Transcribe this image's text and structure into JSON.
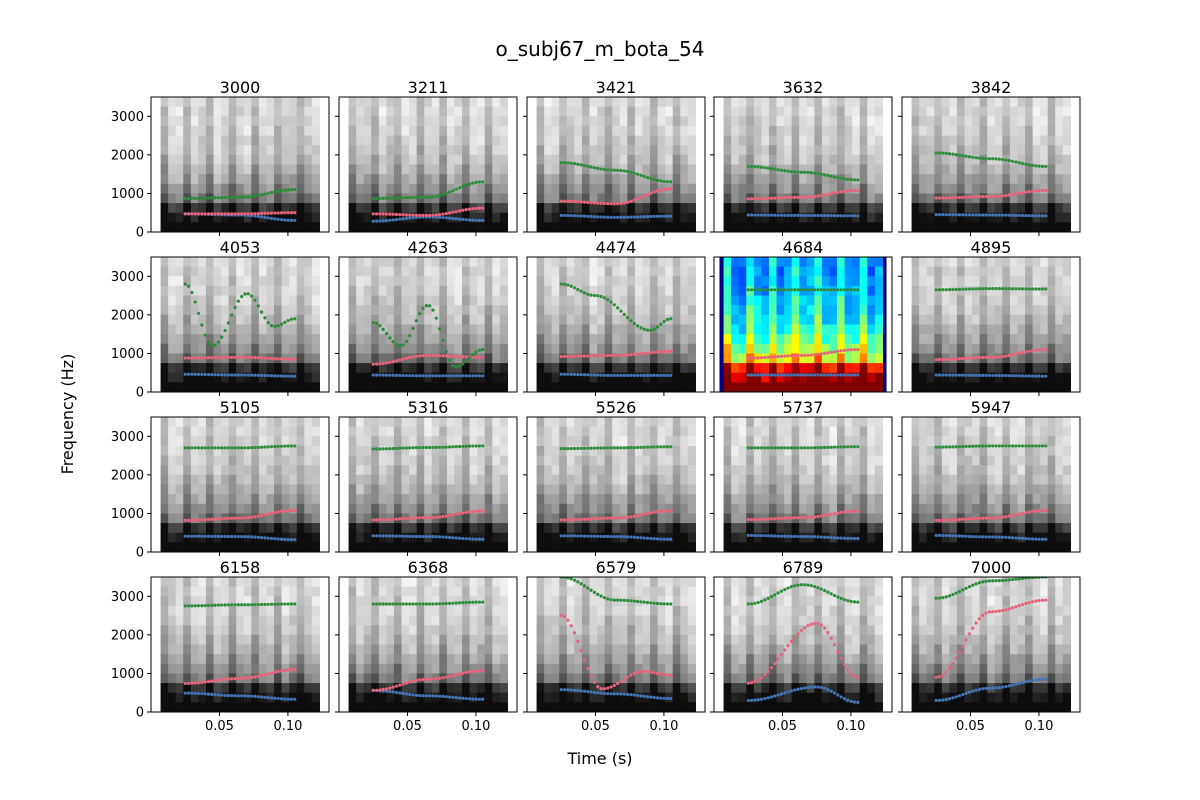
{
  "figure": {
    "title": "o_subj67_m_bota_54",
    "xlabel": "Time (s)",
    "ylabel": "Frequency (Hz)"
  },
  "chart_data": {
    "type": "scatter",
    "description_layout": "4x5 grid of spectrogram panels with formant tracks",
    "panel_titles": [
      "3000",
      "3211",
      "3421",
      "3632",
      "3842",
      "4053",
      "4263",
      "4474",
      "4684",
      "4895",
      "5105",
      "5316",
      "5526",
      "5737",
      "5947",
      "6158",
      "6368",
      "6579",
      "6789",
      "7000"
    ],
    "highlighted_panel": "4684",
    "xlim": [
      0.0,
      0.13
    ],
    "ylim": [
      0,
      3500
    ],
    "x_ticks": [
      0.05,
      0.1
    ],
    "x_tick_labels": [
      "0.05",
      "0.10"
    ],
    "y_ticks": [
      0,
      1000,
      2000,
      3000
    ],
    "y_tick_labels": [
      "0",
      "1000",
      "2000",
      "3000"
    ],
    "x_time_range": [
      0.025,
      0.105
    ],
    "colors": {
      "f1": "#4575b4",
      "f2": "#e7647a",
      "f3": "#2e8b3a",
      "spectrogram": "grayscale",
      "highlight_cmap": "jet"
    },
    "series": [
      {
        "panel": "3000",
        "f1": [
          [
            0.025,
            470
          ],
          [
            0.065,
            440
          ],
          [
            0.105,
            300
          ]
        ],
        "f2": [
          [
            0.025,
            470
          ],
          [
            0.065,
            470
          ],
          [
            0.105,
            500
          ]
        ],
        "f3": [
          [
            0.025,
            870
          ],
          [
            0.065,
            900
          ],
          [
            0.105,
            1100
          ]
        ]
      },
      {
        "panel": "3211",
        "f1": [
          [
            0.025,
            280
          ],
          [
            0.065,
            390
          ],
          [
            0.105,
            300
          ]
        ],
        "f2": [
          [
            0.025,
            470
          ],
          [
            0.065,
            430
          ],
          [
            0.105,
            620
          ]
        ],
        "f3": [
          [
            0.025,
            870
          ],
          [
            0.065,
            900
          ],
          [
            0.105,
            1300
          ]
        ]
      },
      {
        "panel": "3421",
        "f1": [
          [
            0.025,
            430
          ],
          [
            0.065,
            380
          ],
          [
            0.105,
            410
          ]
        ],
        "f2": [
          [
            0.025,
            800
          ],
          [
            0.065,
            730
          ],
          [
            0.105,
            1120
          ]
        ],
        "f3": [
          [
            0.025,
            1800
          ],
          [
            0.065,
            1600
          ],
          [
            0.105,
            1300
          ]
        ]
      },
      {
        "panel": "3632",
        "f1": [
          [
            0.025,
            440
          ],
          [
            0.065,
            430
          ],
          [
            0.105,
            420
          ]
        ],
        "f2": [
          [
            0.025,
            860
          ],
          [
            0.065,
            900
          ],
          [
            0.105,
            1080
          ]
        ],
        "f3": [
          [
            0.025,
            1700
          ],
          [
            0.065,
            1550
          ],
          [
            0.105,
            1350
          ]
        ]
      },
      {
        "panel": "3842",
        "f1": [
          [
            0.025,
            450
          ],
          [
            0.065,
            440
          ],
          [
            0.105,
            420
          ]
        ],
        "f2": [
          [
            0.025,
            880
          ],
          [
            0.065,
            920
          ],
          [
            0.105,
            1080
          ]
        ],
        "f3": [
          [
            0.025,
            2050
          ],
          [
            0.065,
            1900
          ],
          [
            0.105,
            1700
          ]
        ]
      },
      {
        "panel": "4053",
        "f1": [
          [
            0.025,
            460
          ],
          [
            0.065,
            440
          ],
          [
            0.105,
            410
          ]
        ],
        "f2": [
          [
            0.025,
            880
          ],
          [
            0.065,
            900
          ],
          [
            0.105,
            850
          ]
        ],
        "f3": [
          [
            0.025,
            2800
          ],
          [
            0.045,
            1200
          ],
          [
            0.07,
            2550
          ],
          [
            0.09,
            1700
          ],
          [
            0.105,
            1900
          ]
        ]
      },
      {
        "panel": "4263",
        "f1": [
          [
            0.025,
            440
          ],
          [
            0.065,
            420
          ],
          [
            0.105,
            420
          ]
        ],
        "f2": [
          [
            0.025,
            720
          ],
          [
            0.065,
            950
          ],
          [
            0.105,
            900
          ]
        ],
        "f3": [
          [
            0.025,
            1800
          ],
          [
            0.045,
            1200
          ],
          [
            0.065,
            2250
          ],
          [
            0.085,
            650
          ],
          [
            0.105,
            1100
          ]
        ]
      },
      {
        "panel": "4474",
        "f1": [
          [
            0.025,
            460
          ],
          [
            0.065,
            430
          ],
          [
            0.105,
            430
          ]
        ],
        "f2": [
          [
            0.025,
            920
          ],
          [
            0.065,
            950
          ],
          [
            0.105,
            1050
          ]
        ],
        "f3": [
          [
            0.025,
            2800
          ],
          [
            0.05,
            2500
          ],
          [
            0.09,
            1600
          ],
          [
            0.105,
            1900
          ]
        ]
      },
      {
        "panel": "4684",
        "f1": [
          [
            0.025,
            440
          ],
          [
            0.065,
            440
          ],
          [
            0.105,
            440
          ]
        ],
        "f2": [
          [
            0.025,
            880
          ],
          [
            0.065,
            950
          ],
          [
            0.105,
            1100
          ]
        ],
        "f3": [
          [
            0.025,
            2650
          ],
          [
            0.065,
            2650
          ],
          [
            0.105,
            2650
          ]
        ]
      },
      {
        "panel": "4895",
        "f1": [
          [
            0.025,
            440
          ],
          [
            0.065,
            430
          ],
          [
            0.105,
            410
          ]
        ],
        "f2": [
          [
            0.025,
            840
          ],
          [
            0.065,
            900
          ],
          [
            0.105,
            1100
          ]
        ],
        "f3": [
          [
            0.025,
            2650
          ],
          [
            0.065,
            2680
          ],
          [
            0.105,
            2670
          ]
        ]
      },
      {
        "panel": "5105",
        "f1": [
          [
            0.025,
            410
          ],
          [
            0.065,
            400
          ],
          [
            0.105,
            320
          ]
        ],
        "f2": [
          [
            0.025,
            820
          ],
          [
            0.065,
            880
          ],
          [
            0.105,
            1080
          ]
        ],
        "f3": [
          [
            0.025,
            2700
          ],
          [
            0.065,
            2700
          ],
          [
            0.105,
            2750
          ]
        ]
      },
      {
        "panel": "5316",
        "f1": [
          [
            0.025,
            420
          ],
          [
            0.065,
            400
          ],
          [
            0.105,
            330
          ]
        ],
        "f2": [
          [
            0.025,
            830
          ],
          [
            0.065,
            890
          ],
          [
            0.105,
            1060
          ]
        ],
        "f3": [
          [
            0.025,
            2670
          ],
          [
            0.065,
            2710
          ],
          [
            0.105,
            2750
          ]
        ]
      },
      {
        "panel": "5526",
        "f1": [
          [
            0.025,
            420
          ],
          [
            0.065,
            400
          ],
          [
            0.105,
            330
          ]
        ],
        "f2": [
          [
            0.025,
            830
          ],
          [
            0.065,
            880
          ],
          [
            0.105,
            1070
          ]
        ],
        "f3": [
          [
            0.025,
            2680
          ],
          [
            0.065,
            2700
          ],
          [
            0.105,
            2730
          ]
        ]
      },
      {
        "panel": "5737",
        "f1": [
          [
            0.025,
            430
          ],
          [
            0.065,
            400
          ],
          [
            0.105,
            350
          ]
        ],
        "f2": [
          [
            0.025,
            840
          ],
          [
            0.065,
            890
          ],
          [
            0.105,
            1060
          ]
        ],
        "f3": [
          [
            0.025,
            2700
          ],
          [
            0.065,
            2700
          ],
          [
            0.105,
            2730
          ]
        ]
      },
      {
        "panel": "5947",
        "f1": [
          [
            0.025,
            430
          ],
          [
            0.065,
            390
          ],
          [
            0.105,
            330
          ]
        ],
        "f2": [
          [
            0.025,
            820
          ],
          [
            0.065,
            880
          ],
          [
            0.105,
            1080
          ]
        ],
        "f3": [
          [
            0.025,
            2720
          ],
          [
            0.065,
            2750
          ],
          [
            0.105,
            2750
          ]
        ]
      },
      {
        "panel": "6158",
        "f1": [
          [
            0.025,
            490
          ],
          [
            0.065,
            420
          ],
          [
            0.105,
            330
          ]
        ],
        "f2": [
          [
            0.025,
            740
          ],
          [
            0.065,
            870
          ],
          [
            0.105,
            1100
          ]
        ],
        "f3": [
          [
            0.025,
            2750
          ],
          [
            0.065,
            2780
          ],
          [
            0.105,
            2800
          ]
        ]
      },
      {
        "panel": "6368",
        "f1": [
          [
            0.025,
            560
          ],
          [
            0.065,
            420
          ],
          [
            0.105,
            330
          ]
        ],
        "f2": [
          [
            0.025,
            560
          ],
          [
            0.065,
            850
          ],
          [
            0.105,
            1070
          ]
        ],
        "f3": [
          [
            0.025,
            2800
          ],
          [
            0.065,
            2800
          ],
          [
            0.105,
            2850
          ]
        ]
      },
      {
        "panel": "6579",
        "f1": [
          [
            0.025,
            580
          ],
          [
            0.065,
            470
          ],
          [
            0.105,
            350
          ]
        ],
        "f2": [
          [
            0.025,
            2500
          ],
          [
            0.055,
            600
          ],
          [
            0.085,
            1050
          ],
          [
            0.105,
            950
          ]
        ],
        "f3": [
          [
            0.025,
            3500
          ],
          [
            0.065,
            2900
          ],
          [
            0.105,
            2800
          ]
        ]
      },
      {
        "panel": "6789",
        "f1": [
          [
            0.025,
            300
          ],
          [
            0.075,
            650
          ],
          [
            0.105,
            250
          ]
        ],
        "f2": [
          [
            0.025,
            750
          ],
          [
            0.075,
            2300
          ],
          [
            0.105,
            900
          ]
        ],
        "f3": [
          [
            0.025,
            2800
          ],
          [
            0.065,
            3300
          ],
          [
            0.105,
            2850
          ]
        ]
      },
      {
        "panel": "7000",
        "f1": [
          [
            0.025,
            300
          ],
          [
            0.065,
            620
          ],
          [
            0.105,
            850
          ]
        ],
        "f2": [
          [
            0.025,
            900
          ],
          [
            0.065,
            2600
          ],
          [
            0.105,
            2900
          ]
        ],
        "f3": [
          [
            0.025,
            2950
          ],
          [
            0.065,
            3400
          ],
          [
            0.105,
            3500
          ]
        ]
      }
    ]
  }
}
